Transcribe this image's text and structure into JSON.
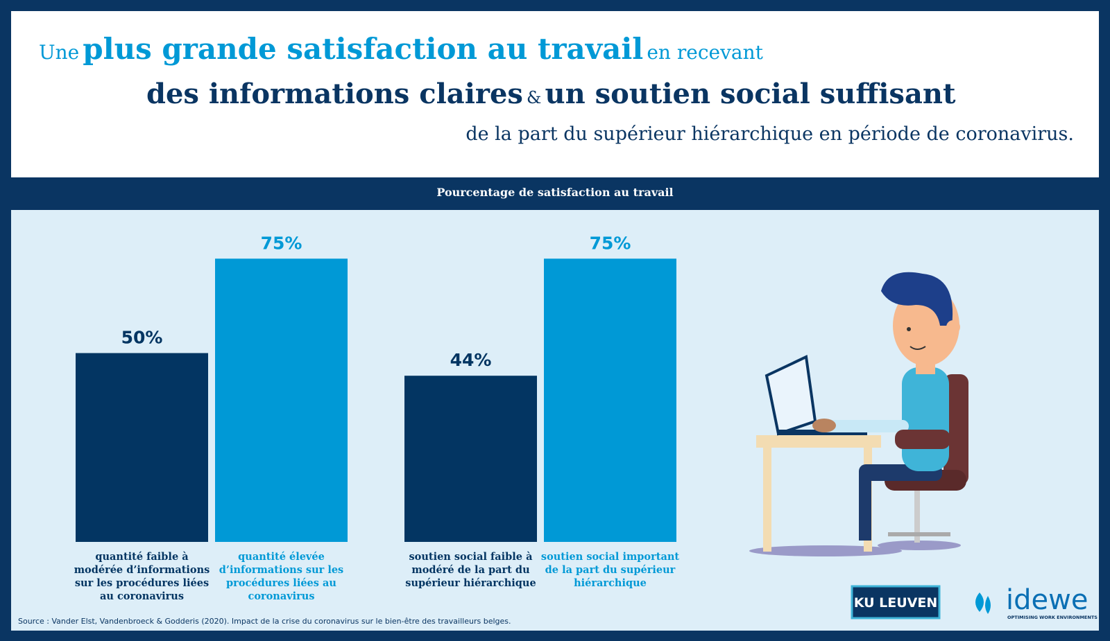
{
  "header": {
    "line1": {
      "before": "Une",
      "bold": "plus grande satisfaction au travail",
      "after": "en recevant"
    },
    "line2": {
      "bold1": "des informations claires",
      "joiner": "&",
      "bold2": "un soutien social suffisant"
    },
    "line3": "de la part du supérieur hiérarchique en période de coronavirus."
  },
  "chart_data": {
    "type": "bar",
    "title": "Pourcentage de satisfaction au travail",
    "categories": [
      "quantité faible à modérée d’informations sur les procédures liées au coronavirus",
      "quantité élevée d’informations sur les procédures liées au coronavirus",
      "soutien social faible à modéré de la part du supérieur hiérarchique",
      "soutien social important de la part du supérieur hiérarchique"
    ],
    "values": [
      50,
      75,
      44,
      75
    ],
    "value_labels": [
      "50%",
      "75%",
      "44%",
      "75%"
    ],
    "colors": [
      "#033562",
      "#0099d6",
      "#033562",
      "#0099d6"
    ]
  },
  "source": "Source : Vander Elst, Vandenbroeck & Godderis (2020). Impact de la crise du coronavirus sur le bien-être des travailleurs belges.",
  "logos": {
    "ku_leuven": "KU LEUVEN",
    "idewe": "idewe",
    "idewe_tagline": "OPTIMISING WORK ENVIRONMENTS"
  }
}
